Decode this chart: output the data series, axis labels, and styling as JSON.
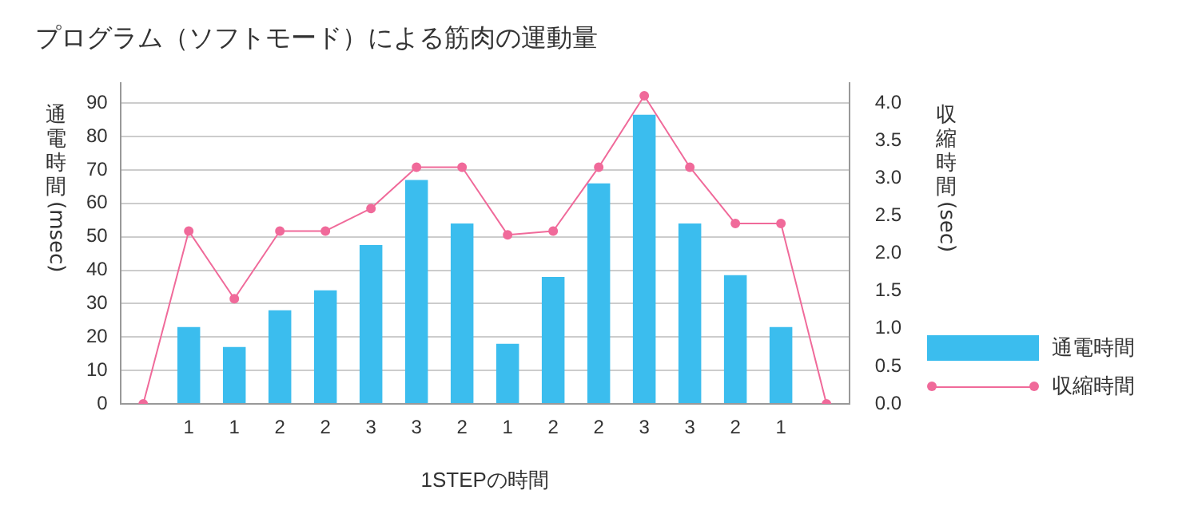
{
  "chart_data": {
    "type": "bar",
    "title": "プログラム（ソフトモード）による筋肉の運動量",
    "xlabel": "1STEPの時間",
    "ylabel": "通電時間(msec)",
    "y2label": "収縮時間(sec)",
    "categories": [
      null,
      "1",
      "1",
      "2",
      "2",
      "3",
      "3",
      "2",
      "1",
      "2",
      "2",
      "3",
      "3",
      "2",
      "1",
      null
    ],
    "series": [
      {
        "name": "通電時間",
        "color": "#3bbdee",
        "values": [
          null,
          23,
          17,
          28,
          34,
          47.5,
          67,
          54,
          18,
          38,
          66,
          86.5,
          54,
          38.5,
          23,
          null
        ]
      },
      {
        "name": "収縮時間",
        "type": "line",
        "axis": "y2",
        "color": "#f06a9a",
        "marker": "circle",
        "values": [
          0,
          2.3,
          1.4,
          2.3,
          2.3,
          2.6,
          3.15,
          3.15,
          2.25,
          2.3,
          3.15,
          4.1,
          3.15,
          2.4,
          2.4,
          0
        ]
      }
    ],
    "ylim": [
      0,
      96
    ],
    "yticks": [
      0,
      10,
      20,
      30,
      40,
      50,
      60,
      70,
      80,
      90
    ],
    "y2lim": [
      0,
      4.27
    ],
    "y2ticks": [
      {
        "value": 0,
        "label": "0.0"
      },
      {
        "value": 0.5,
        "label": "0.5"
      },
      {
        "value": 1,
        "label": "1.0"
      },
      {
        "value": 1.5,
        "label": "1.5"
      },
      {
        "value": 2,
        "label": "2.0"
      },
      {
        "value": 2.5,
        "label": "2.5"
      },
      {
        "value": 3,
        "label": "3.0"
      },
      {
        "value": 3.5,
        "label": "3.5"
      },
      {
        "value": 4,
        "label": "4.0"
      }
    ],
    "grid": "y",
    "legend": "right"
  }
}
